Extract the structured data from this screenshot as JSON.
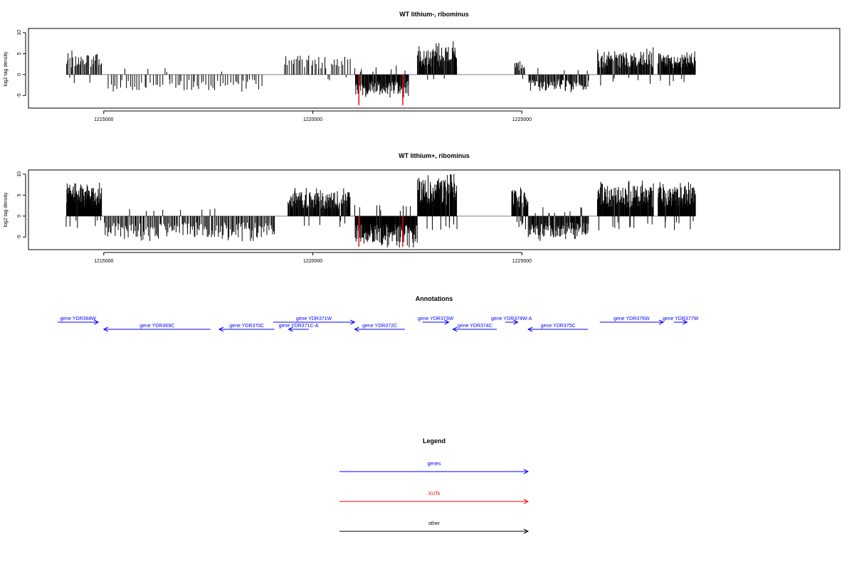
{
  "chart_data": [
    {
      "type": "bar",
      "title": "WT lithium-, ribominus",
      "ylabel": "log2 tag density",
      "xlabel": "",
      "xlim": [
        1213200,
        1232600
      ],
      "ylim": [
        -8,
        11
      ],
      "xticks": [
        1215000,
        1220000,
        1225000
      ],
      "yticks": [
        -5,
        0,
        5,
        10
      ],
      "grid": false,
      "baseline": 0,
      "colors": {
        "signal": "#000000",
        "highlight": "#ff0000",
        "baseline": "#808080"
      },
      "segments": [
        {
          "start": 1214100,
          "end": 1214950,
          "sign": "pos",
          "hi": 6.0,
          "n": 38
        },
        {
          "start": 1215100,
          "end": 1218800,
          "sign": "neg",
          "hi": 4.4,
          "n": 70
        },
        {
          "start": 1219300,
          "end": 1220900,
          "sign": "pos",
          "hi": 5.2,
          "n": 40
        },
        {
          "start": 1221000,
          "end": 1222300,
          "sign": "neg",
          "hi": 5.5,
          "n": 110
        },
        {
          "start": 1222500,
          "end": 1223450,
          "sign": "pos",
          "hi": 8.0,
          "n": 75
        },
        {
          "start": 1224820,
          "end": 1225080,
          "sign": "pos",
          "hi": 3.8,
          "n": 14
        },
        {
          "start": 1225150,
          "end": 1226600,
          "sign": "neg",
          "hi": 4.6,
          "n": 80
        },
        {
          "start": 1226800,
          "end": 1228150,
          "sign": "pos",
          "hi": 6.6,
          "n": 95
        },
        {
          "start": 1228250,
          "end": 1229150,
          "sign": "pos",
          "hi": 6.0,
          "n": 85
        }
      ],
      "highlights": [
        {
          "x": 1221100,
          "value": -7.3
        },
        {
          "x": 1222150,
          "value": -7.3
        }
      ]
    },
    {
      "type": "bar",
      "title": "WT lithium+, ribominus",
      "ylabel": "log2 tag density",
      "xlabel": "",
      "xlim": [
        1213200,
        1232600
      ],
      "ylim": [
        -8,
        11
      ],
      "xticks": [
        1215000,
        1220000,
        1225000
      ],
      "yticks": [
        -5,
        0,
        5,
        10
      ],
      "grid": false,
      "baseline": 0,
      "colors": {
        "signal": "#000000",
        "highlight": "#ff0000",
        "baseline": "#808080"
      },
      "segments": [
        {
          "start": 1214100,
          "end": 1214950,
          "sign": "pos",
          "hi": 8.0,
          "n": 120
        },
        {
          "start": 1215000,
          "end": 1219100,
          "sign": "neg",
          "hi": 6.0,
          "n": 170
        },
        {
          "start": 1219400,
          "end": 1220900,
          "sign": "pos",
          "hi": 6.8,
          "n": 130
        },
        {
          "start": 1221000,
          "end": 1222500,
          "sign": "neg",
          "hi": 7.5,
          "n": 160
        },
        {
          "start": 1222500,
          "end": 1223450,
          "sign": "pos",
          "hi": 10.2,
          "n": 110
        },
        {
          "start": 1224750,
          "end": 1225150,
          "sign": "pos",
          "hi": 7.5,
          "n": 40
        },
        {
          "start": 1225150,
          "end": 1226600,
          "sign": "neg",
          "hi": 6.0,
          "n": 110
        },
        {
          "start": 1226800,
          "end": 1228150,
          "sign": "pos",
          "hi": 8.5,
          "n": 140
        },
        {
          "start": 1228250,
          "end": 1229150,
          "sign": "pos",
          "hi": 8.3,
          "n": 120
        }
      ],
      "highlights": [
        {
          "x": 1221100,
          "value": -7.3
        },
        {
          "x": 1222150,
          "value": -7.3
        }
      ]
    }
  ],
  "annotations": {
    "title": "Annotations",
    "color": "#0000ff",
    "genes": [
      {
        "label": "gene YDR368W",
        "start": 1213900,
        "end": 1214870,
        "strand": "+",
        "row": 0
      },
      {
        "label": "gene YDR369C",
        "start": 1215000,
        "end": 1217550,
        "strand": "-",
        "row": 1
      },
      {
        "label": "gene YDR370C",
        "start": 1217760,
        "end": 1219080,
        "strand": "-",
        "row": 1
      },
      {
        "label": "gene YDR371W",
        "start": 1219050,
        "end": 1221000,
        "strand": "+",
        "row": 0
      },
      {
        "label": "gene YDR371C-A",
        "start": 1219420,
        "end": 1219900,
        "strand": "-",
        "row": 1
      },
      {
        "label": "gene YDR372C",
        "start": 1221000,
        "end": 1222200,
        "strand": "-",
        "row": 1
      },
      {
        "label": "gene YDR373W",
        "start": 1222620,
        "end": 1223250,
        "strand": "+",
        "row": 0
      },
      {
        "label": "gene YDR374C",
        "start": 1223350,
        "end": 1224400,
        "strand": "-",
        "row": 1
      },
      {
        "label": "gene YDR374W-A",
        "start": 1224600,
        "end": 1224900,
        "strand": "+",
        "row": 0
      },
      {
        "label": "gene YDR375C",
        "start": 1225150,
        "end": 1226580,
        "strand": "-",
        "row": 1
      },
      {
        "label": "gene YDR376W",
        "start": 1226860,
        "end": 1228380,
        "strand": "+",
        "row": 0
      },
      {
        "label": "gene YDR377W",
        "start": 1228630,
        "end": 1228950,
        "strand": "+",
        "row": 0
      }
    ]
  },
  "legend": {
    "title": "Legend",
    "items": [
      {
        "label": "genes",
        "color": "#0000ff"
      },
      {
        "label": "XUTs",
        "color": "#ff0000"
      },
      {
        "label": "other",
        "color": "#000000"
      }
    ]
  }
}
